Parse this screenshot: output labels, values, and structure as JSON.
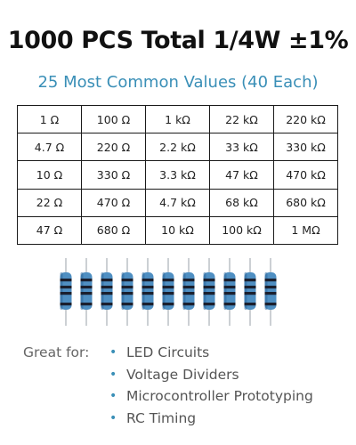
{
  "header": {
    "title": "1000 PCS Total 1/4W ±1%",
    "subtitle": "25 Most Common Values (40 Each)"
  },
  "values_table": [
    [
      "1 Ω",
      "100 Ω",
      "1 kΩ",
      "22 kΩ",
      "220 kΩ"
    ],
    [
      "4.7 Ω",
      "220 Ω",
      "2.2 kΩ",
      "33 kΩ",
      "330 kΩ"
    ],
    [
      "10 Ω",
      "330 Ω",
      "3.3 kΩ",
      "47 kΩ",
      "470 kΩ"
    ],
    [
      "22 Ω",
      "470 Ω",
      "4.7 kΩ",
      "68 kΩ",
      "680 kΩ"
    ],
    [
      "47 Ω",
      "680 Ω",
      "10 kΩ",
      "100 kΩ",
      "1 MΩ"
    ]
  ],
  "illustration": {
    "icon": "resistor-icon",
    "count": 11,
    "colors": {
      "body": "#4f8fc2",
      "body_dark": "#2f6a9c",
      "band": "#1a1f2e",
      "lead": "#bfc4c9"
    }
  },
  "uses": {
    "label": "Great for:",
    "bullet": "•",
    "items": [
      "LED Circuits",
      "Voltage Dividers",
      "Microcontroller Prototyping",
      "RC Timing"
    ]
  },
  "colors": {
    "accent": "#3a8fb7",
    "text": "#111111",
    "muted": "#666666"
  }
}
